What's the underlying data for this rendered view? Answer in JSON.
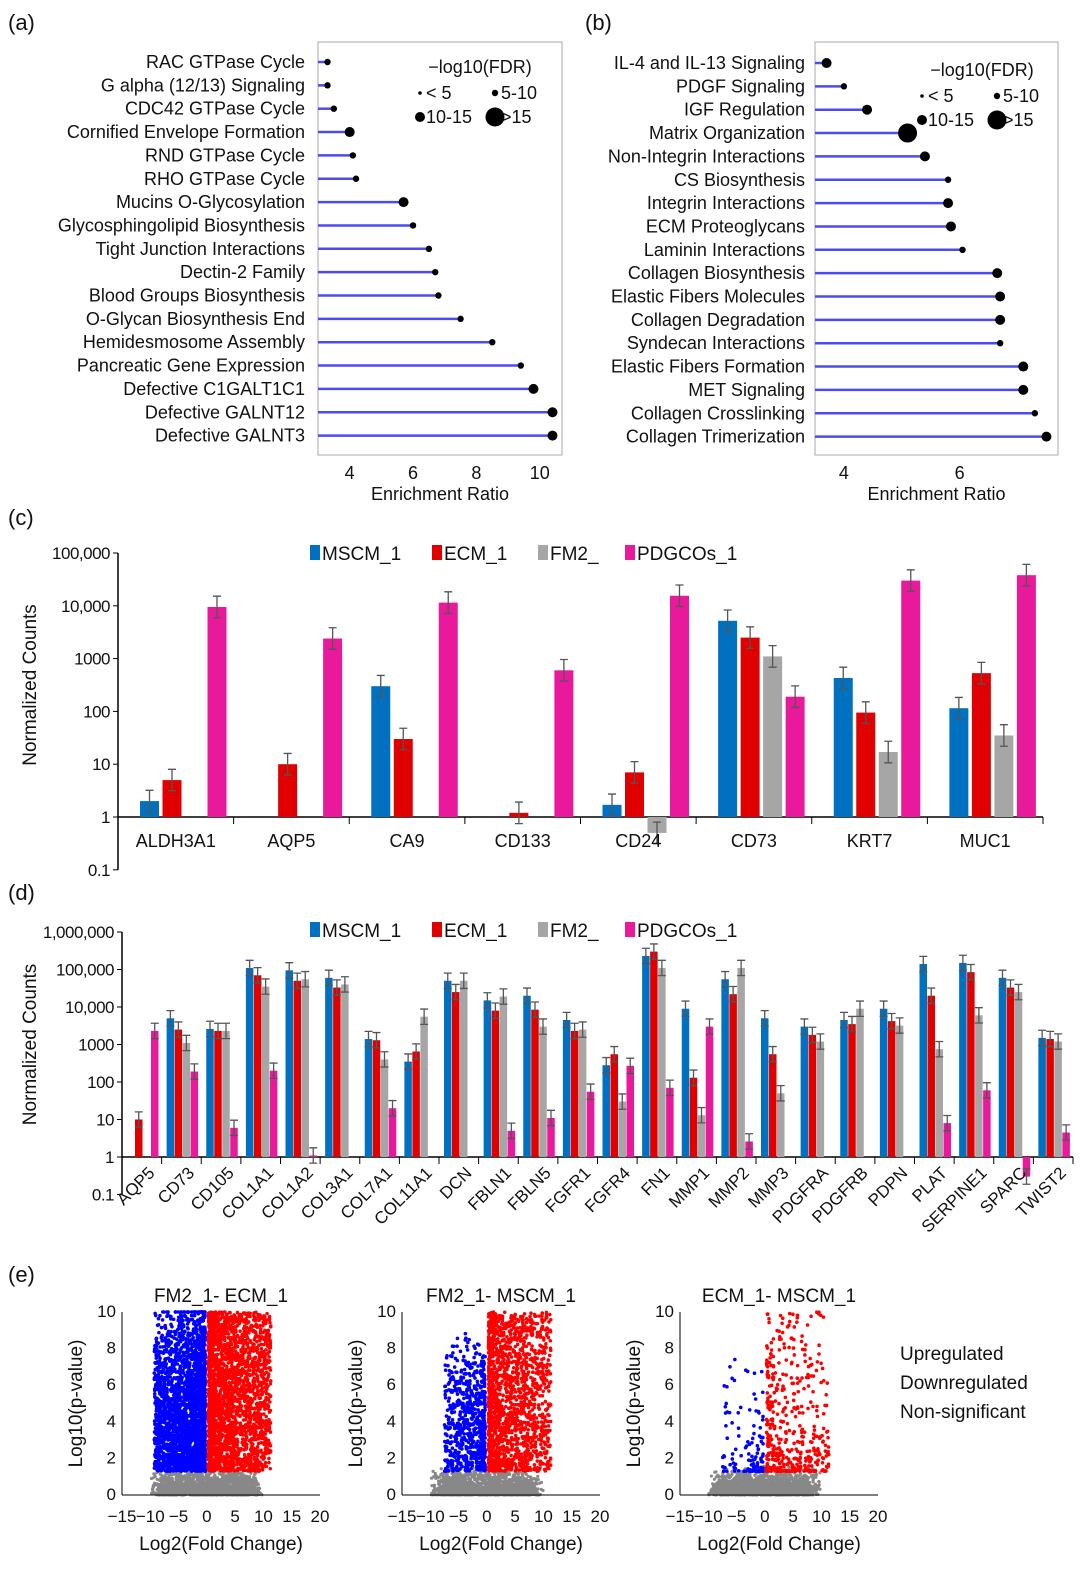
{
  "colors": {
    "MSCM_1": "#0070c0",
    "ECM_1": "#e00000",
    "FM2_": "#a6a6a6",
    "PDGCOs_1": "#e8199a",
    "lollipop": "#4b4bf0",
    "up": "#ff0000",
    "down": "#0000ff",
    "ns": "#888888"
  },
  "chart_data": [
    {
      "panel": "(a)",
      "type": "lollipop",
      "xlabel": "Enrichment Ratio",
      "xticks": [
        4,
        6,
        8,
        10
      ],
      "xlim": [
        3,
        10.7
      ],
      "legend": {
        "title": "−log10(FDR)",
        "items": [
          "< 5",
          "5-10",
          "10-15",
          ">15"
        ],
        "placement": "top-right"
      },
      "categories": [
        "RAC GTPase Cycle",
        "G alpha (12/13) Signaling",
        "CDC42 GTPase Cycle",
        "Cornified Envelope Formation",
        "RND GTPase Cycle",
        "RHO GTPase Cycle",
        "Mucins O-Glycosylation",
        "Glycosphingolipid Biosynthesis",
        "Tight Junction Interactions",
        "Dectin-2 Family",
        "Blood Groups Biosynthesis",
        "O-Glycan Biosynthesis End",
        "Hemidesmosome Assembly",
        "Pancreatic Gene Expression",
        "Defective C1GALT1C1",
        "Defective GALNT12",
        "Defective GALNT3"
      ],
      "values": [
        3.3,
        3.3,
        3.5,
        4.0,
        4.1,
        4.2,
        5.7,
        6.0,
        6.5,
        6.7,
        6.8,
        7.5,
        8.5,
        9.4,
        9.8,
        10.4,
        10.4
      ],
      "fdr_class": [
        "5-10",
        "5-10",
        "5-10",
        "10-15",
        "5-10",
        "5-10",
        "10-15",
        "5-10",
        "5-10",
        "5-10",
        "5-10",
        "5-10",
        "5-10",
        "5-10",
        "10-15",
        "10-15",
        "10-15"
      ]
    },
    {
      "panel": "(b)",
      "type": "lollipop",
      "xlabel": "Enrichment Ratio",
      "xticks": [
        4,
        6
      ],
      "xlim": [
        3.5,
        7.7
      ],
      "legend": {
        "title": "−log10(FDR)",
        "items": [
          "< 5",
          "5-10",
          "10-15",
          ">15"
        ],
        "placement": "top-right"
      },
      "categories": [
        "IL-4 and IL-13 Signaling",
        "PDGF Signaling",
        "IGF Regulation",
        "Matrix Organization",
        "Non-Integrin Interactions",
        "CS Biosynthesis",
        "Integrin Interactions",
        "ECM Proteoglycans",
        "Laminin Interactions",
        "Collagen Biosynthesis",
        "Elastic Fibers Molecules",
        "Collagen Degradation",
        "Syndecan Interactions",
        "Elastic Fibers Formation",
        "MET Signaling",
        "Collagen Crosslinking",
        "Collagen Trimerization"
      ],
      "values": [
        3.7,
        4.0,
        4.4,
        5.1,
        5.4,
        5.8,
        5.8,
        5.85,
        6.05,
        6.65,
        6.7,
        6.7,
        6.7,
        7.1,
        7.1,
        7.3,
        7.5
      ],
      "fdr_class": [
        "10-15",
        "5-10",
        "10-15",
        ">15",
        "10-15",
        "5-10",
        "10-15",
        "10-15",
        "5-10",
        "10-15",
        "10-15",
        "10-15",
        "5-10",
        "10-15",
        "10-15",
        "5-10",
        "10-15"
      ]
    },
    {
      "panel": "(c)",
      "type": "bar",
      "yscale": "log",
      "ylabel": "Normalized Counts",
      "ylim": [
        0.1,
        100000
      ],
      "yticks": [
        "100,000",
        "10,000",
        "1000",
        "100",
        "10",
        "1",
        "0.1"
      ],
      "legend_placement": "top",
      "series_names": [
        "MSCM_1",
        "ECM_1",
        "FM2_",
        "PDGCOs_1"
      ],
      "categories": [
        "ALDH3A1",
        "AQP5",
        "CA9",
        "CD133",
        "CD24",
        "CD73",
        "KRT7",
        "MUC1"
      ],
      "values": [
        [
          2,
          5,
          null,
          9500
        ],
        [
          null,
          10,
          null,
          2400
        ],
        [
          300,
          30,
          null,
          11500
        ],
        [
          null,
          1.2,
          null,
          600
        ],
        [
          1.7,
          7,
          0.5,
          15500
        ],
        [
          5200,
          2500,
          1100,
          190
        ],
        [
          430,
          95,
          17,
          30000
        ],
        [
          115,
          530,
          35,
          38000
        ]
      ]
    },
    {
      "panel": "(d)",
      "type": "bar",
      "yscale": "log",
      "ylabel": "Normalized Counts",
      "ylim": [
        0.1,
        1000000
      ],
      "yticks": [
        "1,000,000",
        "100,000",
        "10,000",
        "1000",
        "100",
        "10",
        "1",
        "0.1"
      ],
      "legend_placement": "top",
      "series_names": [
        "MSCM_1",
        "ECM_1",
        "FM2_",
        "PDGCOs_1"
      ],
      "categories": [
        "AQP5",
        "CD73",
        "CD105",
        "COL1A1",
        "COL1A2",
        "COL3A1",
        "COL7A1",
        "COL11A1",
        "DCN",
        "FBLN1",
        "FBLN5",
        "FGFR1",
        "FGFR4",
        "FN1",
        "MMP1",
        "MMP2",
        "MMP3",
        "PDGFRA",
        "PDGFRB",
        "PDPN",
        "PLAT",
        "SERPINE1",
        "SPARC",
        "TWIST2"
      ],
      "values": [
        [
          null,
          10,
          null,
          2300
        ],
        [
          5000,
          2500,
          1100,
          190
        ],
        [
          2600,
          2300,
          2300,
          6
        ],
        [
          110000,
          70000,
          35000,
          200
        ],
        [
          95000,
          50000,
          55000,
          1.1
        ],
        [
          60000,
          33000,
          40000,
          null
        ],
        [
          1400,
          1300,
          400,
          20
        ],
        [
          350,
          650,
          5500,
          null
        ],
        [
          50000,
          25000,
          50000,
          null
        ],
        [
          15000,
          8000,
          19000,
          5
        ],
        [
          20000,
          8500,
          3000,
          11
        ],
        [
          4500,
          2300,
          2500,
          55
        ],
        [
          280,
          550,
          30,
          270
        ],
        [
          230000,
          300000,
          110000,
          70
        ],
        [
          9000,
          130,
          13,
          3000
        ],
        [
          55000,
          22000,
          110000,
          2.6
        ],
        [
          5000,
          550,
          50,
          null
        ],
        [
          3000,
          1800,
          1200,
          null
        ],
        [
          4500,
          3500,
          9000,
          null
        ],
        [
          9000,
          4200,
          3200,
          null
        ],
        [
          140000,
          20000,
          750,
          8
        ],
        [
          150000,
          85000,
          6000,
          60
        ],
        [
          60000,
          33000,
          25000,
          0.3
        ],
        [
          1500,
          1400,
          1200,
          4.5
        ]
      ]
    },
    {
      "panel": "(e)",
      "type": "scatter",
      "xlabel": "Log2(Fold Change)",
      "ylabel": "Log10(p-value)",
      "xlim": [
        -15,
        20
      ],
      "ylim": [
        0,
        10
      ],
      "xticks": [
        "−15",
        "−10",
        "−5",
        "0",
        "5",
        "10",
        "15",
        "20"
      ],
      "yticks": [
        "0",
        "2",
        "4",
        "6",
        "8",
        "10"
      ],
      "legend": [
        "Upregulated",
        "Downregulated",
        "Non-significant"
      ],
      "legend_placement": "right",
      "plots": [
        {
          "title": "FM2_1- ECM_1",
          "density": "high"
        },
        {
          "title": "FM2_1- MSCM_1",
          "density": "medium"
        },
        {
          "title": "ECM_1- MSCM_1",
          "density": "low"
        }
      ]
    }
  ]
}
